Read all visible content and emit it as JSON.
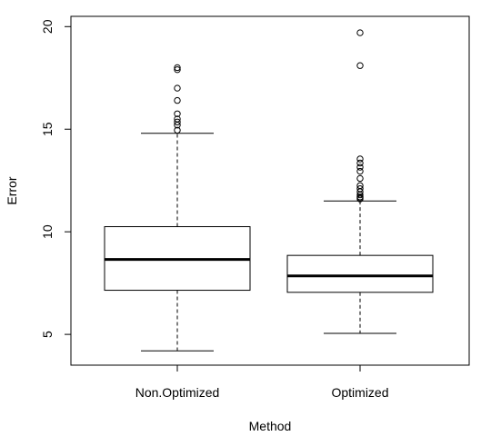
{
  "chart_data": {
    "type": "boxplot",
    "xlabel": "Method",
    "ylabel": "Error",
    "ylim": [
      3.5,
      20.5
    ],
    "yticks": [
      5,
      10,
      15,
      20
    ],
    "grid": false,
    "categories": [
      "Non.Optimized",
      "Optimized"
    ],
    "boxes": [
      {
        "category": "Non.Optimized",
        "whisker_low": 4.2,
        "q1": 7.15,
        "median": 8.65,
        "q3": 10.25,
        "whisker_high": 14.8,
        "outliers": [
          14.95,
          15.2,
          15.35,
          15.5,
          15.75,
          16.4,
          17.0,
          17.9,
          18.0
        ]
      },
      {
        "category": "Optimized",
        "whisker_low": 5.05,
        "q1": 7.05,
        "median": 7.85,
        "q3": 8.85,
        "whisker_high": 11.5,
        "outliers": [
          11.6,
          11.65,
          11.7,
          11.8,
          11.95,
          12.1,
          12.25,
          12.6,
          12.95,
          13.15,
          13.35,
          13.55,
          18.1,
          19.7
        ]
      }
    ]
  }
}
